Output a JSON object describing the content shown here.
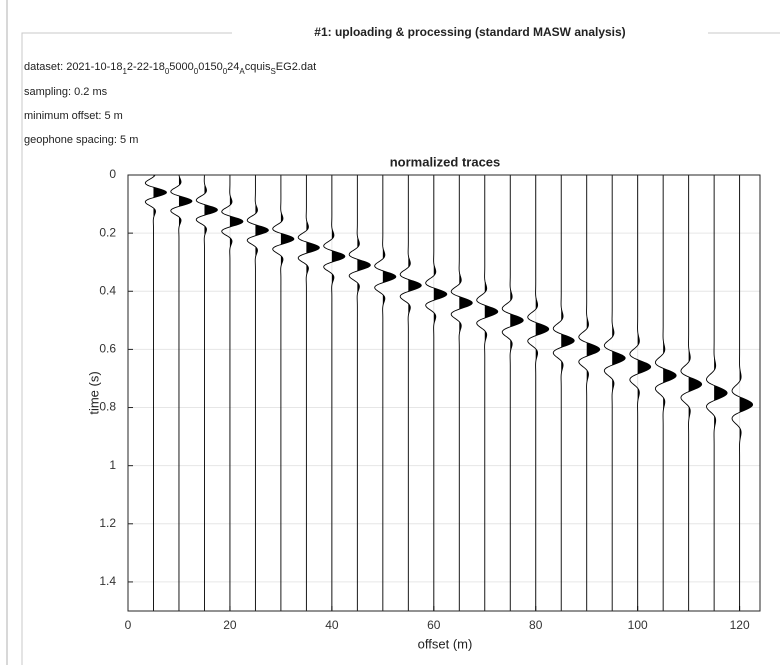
{
  "panel_title": "#1: uploading & processing (standard MASW analysis)",
  "info": {
    "dataset": [
      "dataset: 2021-10-18",
      "1",
      "2-22-18",
      "0",
      "5000",
      "0",
      "0150",
      "0",
      "24",
      "A",
      "cquis",
      "S",
      "EG2.dat"
    ],
    "sampling": "sampling: 0.2 ms",
    "minimum_offset": "minimum offset: 5 m",
    "geophone_spacing": "geophone spacing: 5 m"
  },
  "chart_data": {
    "type": "wiggle",
    "title": "normalized traces",
    "x_label": "offset (m)",
    "y_label": "time (s)",
    "x": [
      5,
      10,
      15,
      20,
      25,
      30,
      35,
      40,
      45,
      50,
      55,
      60,
      65,
      70,
      75,
      80,
      85,
      90,
      95,
      100,
      105,
      110,
      115,
      120
    ],
    "values": [
      0.06,
      0.09,
      0.12,
      0.16,
      0.19,
      0.22,
      0.25,
      0.28,
      0.31,
      0.35,
      0.38,
      0.41,
      0.44,
      0.47,
      0.5,
      0.53,
      0.57,
      0.6,
      0.63,
      0.66,
      0.69,
      0.72,
      0.75,
      0.79
    ],
    "color": "#000000",
    "xlim": [
      0,
      124
    ],
    "ylim": [
      0,
      1.5
    ],
    "y_reversed": true,
    "xticks": [
      0,
      20,
      40,
      60,
      80,
      100,
      120
    ],
    "yticks": [
      0,
      0.2,
      0.4,
      0.6,
      0.8,
      1,
      1.2,
      1.4
    ],
    "grid": true
  }
}
